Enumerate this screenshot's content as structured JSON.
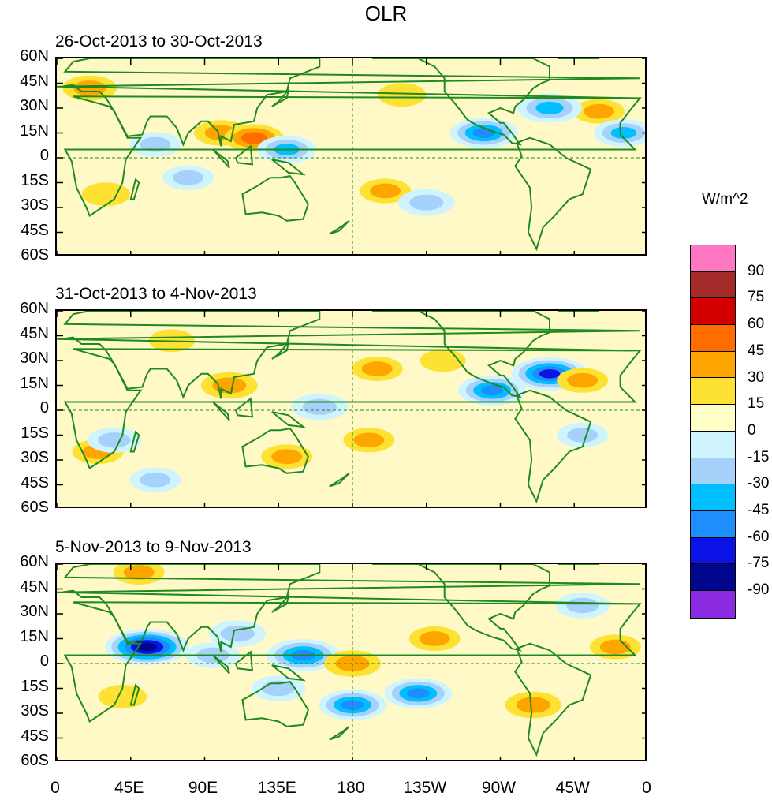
{
  "chart_data": {
    "type": "heatmap",
    "title": "OLR",
    "units": "W/m^2",
    "panels": [
      {
        "subtitle": "26-Oct-2013 to 30-Oct-2013",
        "anomalies": [
          {
            "lon": 20,
            "lat": 42,
            "v": 35
          },
          {
            "lon": 100,
            "lat": 15,
            "v": 35
          },
          {
            "lon": 120,
            "lat": 12,
            "v": 45
          },
          {
            "lon": 200,
            "lat": -20,
            "v": 30
          },
          {
            "lon": 330,
            "lat": 28,
            "v": 30
          },
          {
            "lon": 210,
            "lat": 38,
            "v": 25
          },
          {
            "lon": 140,
            "lat": 5,
            "v": -45
          },
          {
            "lon": 260,
            "lat": 15,
            "v": -60
          },
          {
            "lon": 300,
            "lat": 30,
            "v": -55
          },
          {
            "lon": 345,
            "lat": 15,
            "v": -45
          },
          {
            "lon": 225,
            "lat": -27,
            "v": -40
          },
          {
            "lon": 60,
            "lat": 8,
            "v": -30
          },
          {
            "lon": 30,
            "lat": -22,
            "v": 25
          },
          {
            "lon": 80,
            "lat": -12,
            "v": -30
          }
        ]
      },
      {
        "subtitle": "31-Oct-2013 to 4-Nov-2013",
        "anomalies": [
          {
            "lon": 105,
            "lat": 15,
            "v": 40
          },
          {
            "lon": 25,
            "lat": -25,
            "v": 30
          },
          {
            "lon": 195,
            "lat": 25,
            "v": 30
          },
          {
            "lon": 140,
            "lat": -28,
            "v": 30
          },
          {
            "lon": 190,
            "lat": -18,
            "v": 30
          },
          {
            "lon": 300,
            "lat": 22,
            "v": -75
          },
          {
            "lon": 265,
            "lat": 12,
            "v": -60
          },
          {
            "lon": 160,
            "lat": 2,
            "v": -40
          },
          {
            "lon": 35,
            "lat": -18,
            "v": -35
          },
          {
            "lon": 70,
            "lat": 42,
            "v": 20
          },
          {
            "lon": 320,
            "lat": -15,
            "v": -30
          },
          {
            "lon": 60,
            "lat": -42,
            "v": -30
          },
          {
            "lon": 320,
            "lat": 18,
            "v": 30
          },
          {
            "lon": 235,
            "lat": 30,
            "v": 20
          }
        ]
      },
      {
        "subtitle": "5-Nov-2013 to 9-Nov-2013",
        "anomalies": [
          {
            "lon": 55,
            "lat": 10,
            "v": -90
          },
          {
            "lon": 150,
            "lat": 5,
            "v": -70
          },
          {
            "lon": 180,
            "lat": -25,
            "v": -60
          },
          {
            "lon": 220,
            "lat": -18,
            "v": -60
          },
          {
            "lon": 110,
            "lat": 18,
            "v": -40
          },
          {
            "lon": 290,
            "lat": -25,
            "v": 40
          },
          {
            "lon": 180,
            "lat": 0,
            "v": 40
          },
          {
            "lon": 230,
            "lat": 15,
            "v": 30
          },
          {
            "lon": 340,
            "lat": 10,
            "v": 30
          },
          {
            "lon": 50,
            "lat": 55,
            "v": 30
          },
          {
            "lon": 320,
            "lat": 35,
            "v": -35
          },
          {
            "lon": 135,
            "lat": -15,
            "v": -35
          },
          {
            "lon": 95,
            "lat": 5,
            "v": -35
          },
          {
            "lon": 40,
            "lat": -20,
            "v": 25
          }
        ]
      }
    ],
    "lat_ticks": [
      "60N",
      "45N",
      "30N",
      "15N",
      "0",
      "15S",
      "30S",
      "45S",
      "60S"
    ],
    "lon_ticks": [
      "0",
      "45E",
      "90E",
      "135E",
      "180",
      "135W",
      "90W",
      "45W",
      "0"
    ],
    "xlim": [
      0,
      360
    ],
    "ylim": [
      -60,
      60
    ],
    "colorbar": {
      "labels": [
        "90",
        "75",
        "60",
        "45",
        "30",
        "15",
        "0",
        "-15",
        "-30",
        "-45",
        "-60",
        "-75",
        "-90"
      ],
      "colors": [
        "#ff77c3",
        "#a52a2a",
        "#d40000",
        "#ff6c00",
        "#ffa500",
        "#fde234",
        "#ffffc8",
        "#cff4fe",
        "#a6d1fb",
        "#00bfff",
        "#1e8eff",
        "#0a12e6",
        "#00078c",
        "#8a2be2"
      ]
    }
  }
}
